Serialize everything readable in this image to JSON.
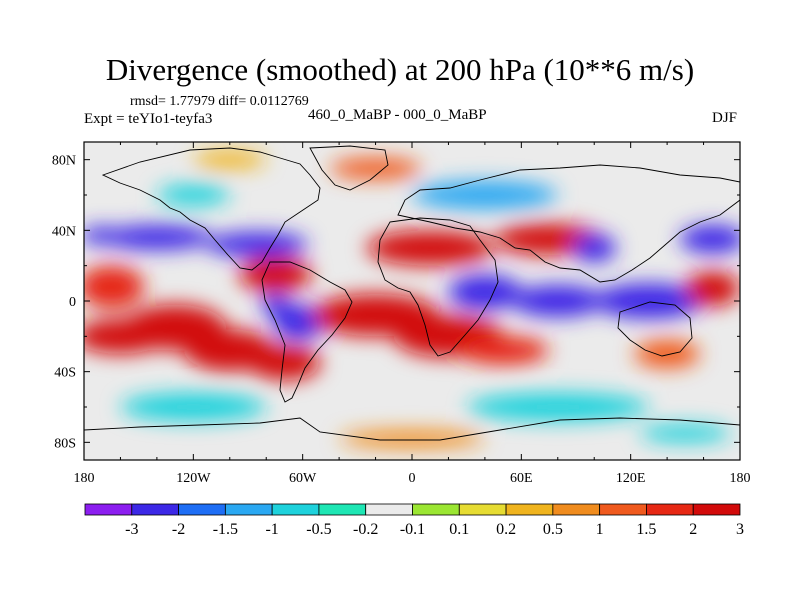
{
  "chart_data": {
    "type": "heatmap",
    "title": "Divergence (smoothed) at 200 hPa (10**6 m/s)",
    "stats": "rmsd= 1.77979 diff= 0.0112769",
    "experiment": "Expt = teYIo1-teyfa3",
    "subtitle": "460_0_MaBP - 000_0_MaBP",
    "season": "DJF",
    "x_axis": {
      "range": [
        -180,
        180
      ],
      "tick_labels": [
        "180",
        "120W",
        "60W",
        "0",
        "60E",
        "120E",
        "180"
      ]
    },
    "y_axis": {
      "range": [
        -90,
        90
      ],
      "tick_labels": [
        "80N",
        "40N",
        "0",
        "40S",
        "80S"
      ]
    },
    "colorbar": {
      "colors": [
        "#8c1ef0",
        "#3c28e6",
        "#1e6ef5",
        "#2aa8f2",
        "#1ed2dc",
        "#1ee6b4",
        "#ebebeb",
        "#9be632",
        "#e6dc32",
        "#f0b41e",
        "#f08c1e",
        "#f05a1e",
        "#e62814",
        "#d20a0a"
      ],
      "labels": [
        "-3",
        "-2",
        "-1.5",
        "-1",
        "-0.5",
        "-0.2",
        "-0.1",
        "0.1",
        "0.2",
        "0.5",
        "1",
        "1.5",
        "2",
        "3"
      ]
    },
    "blobs": [
      {
        "lon": -165,
        "lat": 8,
        "rx": 18,
        "ry": 12,
        "v": 1.5
      },
      {
        "lon": -160,
        "lat": -20,
        "rx": 25,
        "ry": 10,
        "v": 2.5
      },
      {
        "lon": -130,
        "lat": -15,
        "rx": 28,
        "ry": 13,
        "v": 3
      },
      {
        "lon": -100,
        "lat": -28,
        "rx": 25,
        "ry": 12,
        "v": 2.5
      },
      {
        "lon": -140,
        "lat": 36,
        "rx": 30,
        "ry": 7,
        "v": -2.5
      },
      {
        "lon": -170,
        "lat": 37,
        "rx": 12,
        "ry": 5,
        "v": -2.5
      },
      {
        "lon": -85,
        "lat": 32,
        "rx": 28,
        "ry": 7,
        "v": -3
      },
      {
        "lon": -75,
        "lat": 15,
        "rx": 20,
        "ry": 10,
        "v": 3
      },
      {
        "lon": -75,
        "lat": -2,
        "rx": 8,
        "ry": 6,
        "v": -3
      },
      {
        "lon": -62,
        "lat": -12,
        "rx": 14,
        "ry": 10,
        "v": -3
      },
      {
        "lon": -70,
        "lat": -35,
        "rx": 20,
        "ry": 10,
        "v": 2.5
      },
      {
        "lon": -20,
        "lat": -8,
        "rx": 35,
        "ry": 12,
        "v": 3
      },
      {
        "lon": 20,
        "lat": -20,
        "rx": 30,
        "ry": 12,
        "v": 3
      },
      {
        "lon": 10,
        "lat": 30,
        "rx": 35,
        "ry": 10,
        "v": 3
      },
      {
        "lon": 75,
        "lat": 35,
        "rx": 30,
        "ry": 9,
        "v": 3
      },
      {
        "lon": 100,
        "lat": 30,
        "rx": 12,
        "ry": 8,
        "v": -3
      },
      {
        "lon": 40,
        "lat": 5,
        "rx": 20,
        "ry": 10,
        "v": -3
      },
      {
        "lon": 80,
        "lat": 0,
        "rx": 25,
        "ry": 9,
        "v": -3
      },
      {
        "lon": 130,
        "lat": 0,
        "rx": 30,
        "ry": 10,
        "v": -3
      },
      {
        "lon": 165,
        "lat": 35,
        "rx": 18,
        "ry": 8,
        "v": -2.5
      },
      {
        "lon": 165,
        "lat": 7,
        "rx": 15,
        "ry": 10,
        "v": 2
      },
      {
        "lon": 50,
        "lat": -28,
        "rx": 25,
        "ry": 8,
        "v": 1.5
      },
      {
        "lon": 140,
        "lat": -30,
        "rx": 18,
        "ry": 8,
        "v": 1.2
      },
      {
        "lon": -120,
        "lat": 60,
        "rx": 20,
        "ry": 6,
        "v": -1
      },
      {
        "lon": 40,
        "lat": 60,
        "rx": 40,
        "ry": 8,
        "v": -1.2
      },
      {
        "lon": -120,
        "lat": -60,
        "rx": 40,
        "ry": 8,
        "v": -1
      },
      {
        "lon": 80,
        "lat": -60,
        "rx": 50,
        "ry": 8,
        "v": -1
      },
      {
        "lon": -20,
        "lat": 75,
        "rx": 25,
        "ry": 6,
        "v": 1
      },
      {
        "lon": 0,
        "lat": -78,
        "rx": 40,
        "ry": 5,
        "v": 0.5
      },
      {
        "lon": 150,
        "lat": -75,
        "rx": 25,
        "ry": 5,
        "v": -0.8
      },
      {
        "lon": -100,
        "lat": 80,
        "rx": 20,
        "ry": 5,
        "v": 0.3
      }
    ]
  }
}
